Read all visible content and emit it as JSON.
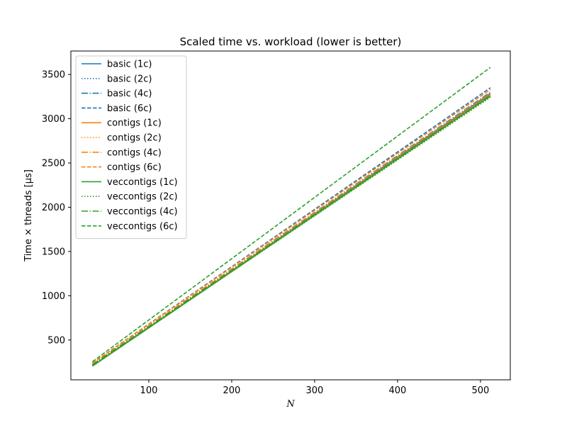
{
  "chart_data": {
    "type": "line",
    "title": "Scaled time vs. workload (lower is better)",
    "xlabel": "N",
    "ylabel": "Time × threads [µs]",
    "xlim": [
      6,
      536
    ],
    "ylim": [
      50,
      3765
    ],
    "xticks": [
      100,
      200,
      300,
      400,
      500
    ],
    "yticks": [
      500,
      1000,
      1500,
      2000,
      2500,
      3000,
      3500
    ],
    "grid": false,
    "legend_position": "upper-left",
    "x": [
      32,
      512
    ],
    "series": [
      {
        "name": "basic (1c)",
        "color": "#1f77b4",
        "style": "solid",
        "values": [
          205,
          3285
        ]
      },
      {
        "name": "basic (2c)",
        "color": "#1f77b4",
        "style": "dotted",
        "values": [
          215,
          3260
        ]
      },
      {
        "name": "basic (4c)",
        "color": "#1f77b4",
        "style": "dashdot",
        "values": [
          225,
          3300
        ]
      },
      {
        "name": "basic (6c)",
        "color": "#1f77b4",
        "style": "dashed",
        "values": [
          240,
          3350
        ]
      },
      {
        "name": "contigs (1c)",
        "color": "#ff7f0e",
        "style": "solid",
        "values": [
          210,
          3270
        ]
      },
      {
        "name": "contigs (2c)",
        "color": "#ff7f0e",
        "style": "dotted",
        "values": [
          215,
          3245
        ]
      },
      {
        "name": "contigs (4c)",
        "color": "#ff7f0e",
        "style": "dashdot",
        "values": [
          225,
          3290
        ]
      },
      {
        "name": "contigs (6c)",
        "color": "#ff7f0e",
        "style": "dashed",
        "values": [
          240,
          3330
        ]
      },
      {
        "name": "veccontigs (1c)",
        "color": "#2ca02c",
        "style": "solid",
        "values": [
          205,
          3255
        ]
      },
      {
        "name": "veccontigs (2c)",
        "color": "#2ca02c",
        "style": "dotted",
        "values": [
          210,
          3240
        ]
      },
      {
        "name": "veccontigs (4c)",
        "color": "#2ca02c",
        "style": "dashdot",
        "values": [
          220,
          3265
        ]
      },
      {
        "name": "veccontigs (6c)",
        "color": "#2ca02c",
        "style": "dashed",
        "values": [
          255,
          3580
        ]
      }
    ]
  }
}
